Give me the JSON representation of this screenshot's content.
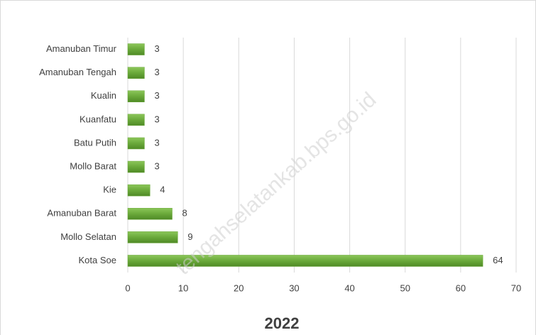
{
  "chart_data": {
    "type": "bar",
    "orientation": "horizontal",
    "title": "2022",
    "categories": [
      "Amanuban Timur",
      "Amanuban Tengah",
      "Kualin",
      "Kuanfatu",
      "Batu Putih",
      "Mollo Barat",
      "Kie",
      "Amanuban Barat",
      "Mollo Selatan",
      "Kota Soe"
    ],
    "values": [
      3,
      3,
      3,
      3,
      3,
      3,
      4,
      8,
      9,
      64
    ],
    "color": "#6aa93a",
    "xlim": [
      0,
      70
    ],
    "xticks": [
      0,
      10,
      20,
      30,
      40,
      50,
      60,
      70
    ],
    "grid": true,
    "watermark": "tengahselatankab.bps.go.id"
  }
}
